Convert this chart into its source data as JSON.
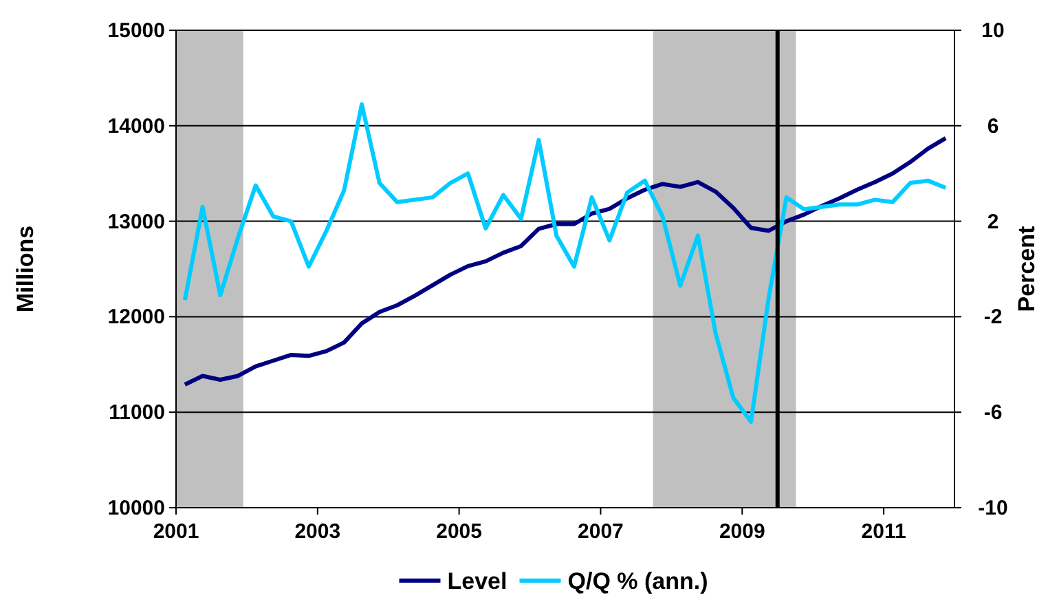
{
  "chart_data": {
    "type": "line",
    "ylabel": "Millions",
    "y2label": "Percent",
    "x": [
      2001.125,
      2001.375,
      2001.625,
      2001.875,
      2002.125,
      2002.375,
      2002.625,
      2002.875,
      2003.125,
      2003.375,
      2003.625,
      2003.875,
      2004.125,
      2004.375,
      2004.625,
      2004.875,
      2005.125,
      2005.375,
      2005.625,
      2005.875,
      2006.125,
      2006.375,
      2006.625,
      2006.875,
      2007.125,
      2007.375,
      2007.625,
      2007.875,
      2008.125,
      2008.375,
      2008.625,
      2008.875,
      2009.125,
      2009.375,
      2009.625,
      2009.875,
      2010.125,
      2010.375,
      2010.625,
      2010.875,
      2011.125,
      2011.375,
      2011.625,
      2011.875
    ],
    "series": [
      {
        "name": "Level",
        "color": "#000080",
        "values": [
          11290,
          11380,
          11340,
          11380,
          11480,
          11540,
          11600,
          11590,
          11640,
          11730,
          11930,
          12050,
          12120,
          12220,
          12330,
          12440,
          12530,
          12580,
          12670,
          12740,
          12920,
          12970,
          12970,
          13080,
          13130,
          13240,
          13330,
          13390,
          13360,
          13410,
          13310,
          13140,
          12930,
          12900,
          13000,
          13070,
          13160,
          13240,
          13330,
          13410,
          13500,
          13620,
          13760,
          13870
        ]
      },
      {
        "name": "Q/Q % (ann.)",
        "color": "#00ccff",
        "axis": "y2",
        "values": [
          -1.3,
          2.6,
          -1.1,
          1.3,
          3.5,
          2.2,
          2.0,
          0.1,
          1.6,
          3.3,
          6.9,
          3.6,
          2.8,
          2.9,
          3.0,
          3.6,
          4.0,
          1.7,
          3.1,
          2.1,
          5.4,
          1.4,
          0.1,
          3.0,
          1.2,
          3.2,
          3.7,
          2.2,
          -0.7,
          1.4,
          -2.7,
          -5.4,
          -6.4,
          -1.2,
          3.0,
          2.5,
          2.6,
          2.7,
          2.7,
          2.9,
          2.8,
          3.6,
          3.7,
          3.4
        ]
      }
    ],
    "xlim": [
      2001,
      2012
    ],
    "xticks": [
      2001,
      2003,
      2005,
      2007,
      2009,
      2011
    ],
    "ylim": [
      10000,
      15000
    ],
    "yticks": [
      10000,
      11000,
      12000,
      13000,
      14000,
      15000
    ],
    "y2lim": [
      -10,
      10
    ],
    "y2ticks": [
      -10,
      -6,
      -2,
      2,
      6,
      10
    ],
    "bands": [
      {
        "axis": "x",
        "from": 2001,
        "to": 2001.95,
        "color": "#c0c0c0"
      },
      {
        "axis": "x",
        "from": 2007.74,
        "to": 2009.76,
        "color": "#c0c0c0"
      }
    ],
    "ref_lines": [
      {
        "axis": "x",
        "value": 2009.5,
        "color": "#000000"
      }
    ],
    "grid": "y",
    "legend": "bottom",
    "marker": "none",
    "line_style": "solid"
  }
}
